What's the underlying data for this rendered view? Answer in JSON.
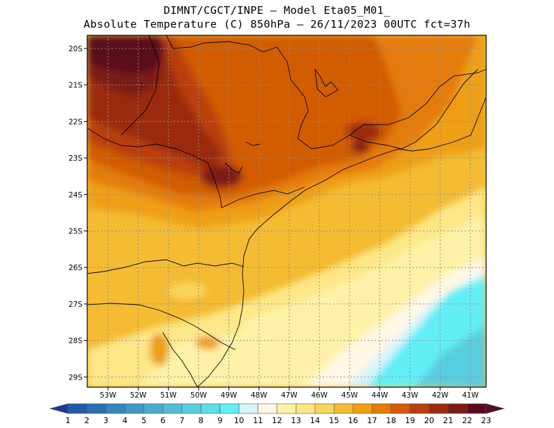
{
  "title": {
    "line1": "DIMNT/CGCT/INPE –  Model Eta05_M01_",
    "line2": "Absolute Temperature (C) 850hPa –  26/11/2023 00UTC fct=37h"
  },
  "map": {
    "lon_labels": [
      "53W",
      "52W",
      "51W",
      "50W",
      "49W",
      "48W",
      "47W",
      "46W",
      "45W",
      "44W",
      "43W",
      "42W",
      "41W"
    ],
    "lat_labels": [
      "20S",
      "21S",
      "22S",
      "23S",
      "24S",
      "25S",
      "26S",
      "27S",
      "28S",
      "29S"
    ],
    "grid_color": "#8c8c8c",
    "border_color": "#000000"
  },
  "colorbar": {
    "labels": [
      "1",
      "2",
      "3",
      "4",
      "5",
      "6",
      "7",
      "8",
      "9",
      "10",
      "11",
      "12",
      "13",
      "14",
      "15",
      "16",
      "17",
      "18",
      "19",
      "20",
      "21",
      "22",
      "23"
    ],
    "colors": [
      "#1f3a8c",
      "#215aa8",
      "#2c70b4",
      "#3585bf",
      "#3f98c8",
      "#4aabcf",
      "#54bcd4",
      "#58cde0",
      "#5ddcea",
      "#62eef7",
      "#d5f4fb",
      "#fff8e4",
      "#fff2a8",
      "#fde786",
      "#f9d55d",
      "#f4bb33",
      "#ee9f12",
      "#e47b0a",
      "#d25b05",
      "#b9400a",
      "#9b2a0c",
      "#7d1a12",
      "#5b0a1e"
    ]
  }
}
